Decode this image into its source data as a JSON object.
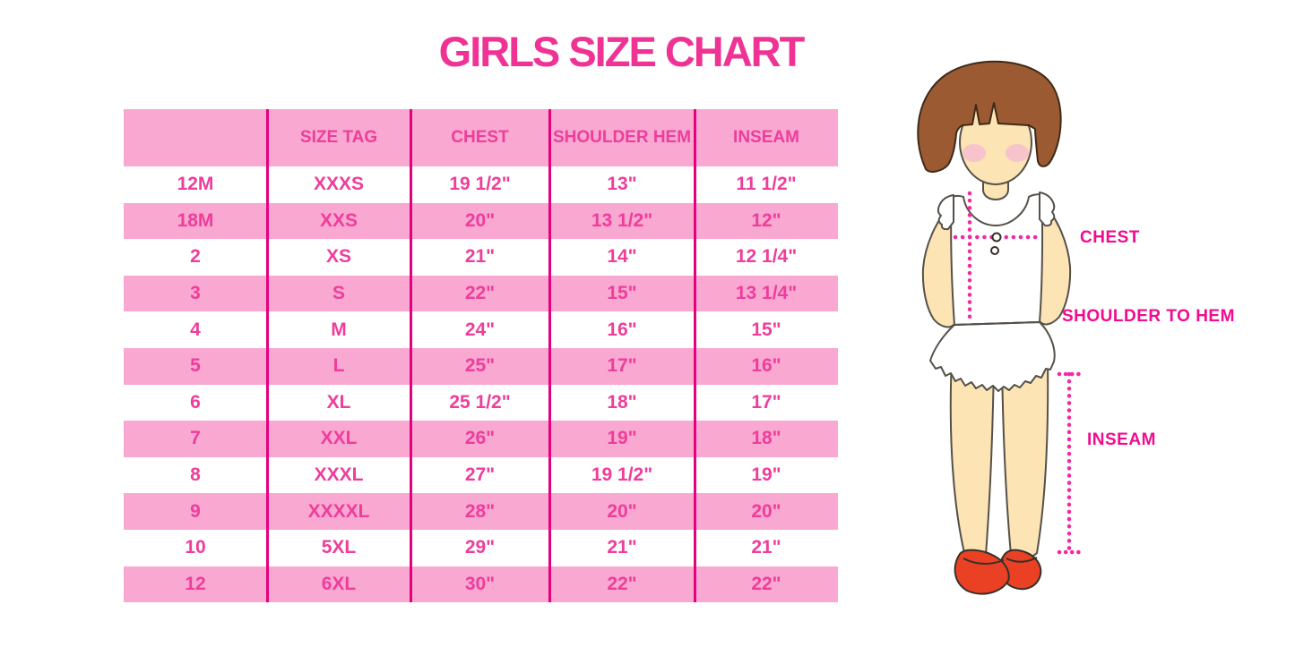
{
  "title": "GIRLS SIZE CHART",
  "colors": {
    "title_pink": "#EF3395",
    "row_pink": "#F9A8D2",
    "text_pink": "#EE3D9B",
    "divider_magenta": "#E6007E",
    "label_magenta": "#F10B8F",
    "dotted_line_pink": "#F22AA2",
    "hair_brown": "#9C5A33",
    "skin": "#FCE4B4",
    "shoe_red": "#EA4125"
  },
  "chart_data": {
    "type": "table",
    "title": "GIRLS SIZE CHART",
    "columns": [
      "",
      "SIZE TAG",
      "CHEST",
      "SHOULDER HEM",
      "INSEAM"
    ],
    "rows": [
      [
        "12M",
        "XXXS",
        "19 1/2\"",
        "13\"",
        "11 1/2\""
      ],
      [
        "18M",
        "XXS",
        "20\"",
        "13 1/2\"",
        "12\""
      ],
      [
        "2",
        "XS",
        "21\"",
        "14\"",
        "12 1/4\""
      ],
      [
        "3",
        "S",
        "22\"",
        "15\"",
        "13 1/4\""
      ],
      [
        "4",
        "M",
        "24\"",
        "16\"",
        "15\""
      ],
      [
        "5",
        "L",
        "25\"",
        "17\"",
        "16\""
      ],
      [
        "6",
        "XL",
        "25 1/2\"",
        "18\"",
        "17\""
      ],
      [
        "7",
        "XXL",
        "26\"",
        "19\"",
        "18\""
      ],
      [
        "8",
        "XXXL",
        "27\"",
        "19 1/2\"",
        "19\""
      ],
      [
        "9",
        "XXXXL",
        "28\"",
        "20\"",
        "20\""
      ],
      [
        "10",
        "5XL",
        "29\"",
        "21\"",
        "21\""
      ],
      [
        "12",
        "6XL",
        "30\"",
        "22\"",
        "22\""
      ]
    ],
    "layout_hints": {
      "row_striping": "white/pink alternating, header pink",
      "grid": "vertical magenta dividers only, no horizontal lines"
    }
  },
  "figure": {
    "labels": {
      "chest": "CHEST",
      "shoulder_to_hem": "SHOULDER TO HEM",
      "inseam": "INSEAM"
    }
  }
}
